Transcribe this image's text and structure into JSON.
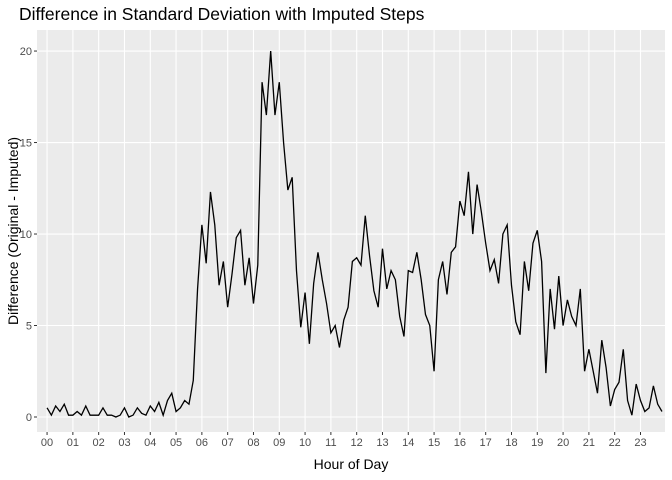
{
  "chart_data": {
    "type": "line",
    "title": "Difference in Standard Deviation with Imputed Steps",
    "x_label": "Hour of Day",
    "y_label": "Difference (Original - Imputed)",
    "grid": true,
    "xlim": [
      -0.39,
      23.95
    ],
    "ylim": [
      -0.82,
      21.15
    ],
    "xticks": [
      {
        "value": 0,
        "label": "00"
      },
      {
        "value": 1,
        "label": "01"
      },
      {
        "value": 2,
        "label": "02"
      },
      {
        "value": 3,
        "label": "03"
      },
      {
        "value": 4,
        "label": "04"
      },
      {
        "value": 5,
        "label": "05"
      },
      {
        "value": 6,
        "label": "06"
      },
      {
        "value": 7,
        "label": "07"
      },
      {
        "value": 8,
        "label": "08"
      },
      {
        "value": 9,
        "label": "09"
      },
      {
        "value": 10,
        "label": "10"
      },
      {
        "value": 11,
        "label": "11"
      },
      {
        "value": 12,
        "label": "12"
      },
      {
        "value": 13,
        "label": "13"
      },
      {
        "value": 14,
        "label": "14"
      },
      {
        "value": 15,
        "label": "15"
      },
      {
        "value": 16,
        "label": "16"
      },
      {
        "value": 17,
        "label": "17"
      },
      {
        "value": 18,
        "label": "18"
      },
      {
        "value": 19,
        "label": "19"
      },
      {
        "value": 20,
        "label": "20"
      },
      {
        "value": 21,
        "label": "21"
      },
      {
        "value": 22,
        "label": "22"
      },
      {
        "value": 23,
        "label": "23"
      }
    ],
    "yticks": [
      0,
      5,
      10,
      15,
      20
    ],
    "color": "#000000",
    "x": [
      0,
      0.167,
      0.333,
      0.5,
      0.667,
      0.833,
      1,
      1.167,
      1.333,
      1.5,
      1.667,
      1.833,
      2,
      2.167,
      2.333,
      2.5,
      2.667,
      2.833,
      3,
      3.167,
      3.333,
      3.5,
      3.667,
      3.833,
      4,
      4.167,
      4.333,
      4.5,
      4.667,
      4.833,
      5,
      5.167,
      5.333,
      5.5,
      5.667,
      5.833,
      6,
      6.167,
      6.333,
      6.5,
      6.667,
      6.833,
      7,
      7.167,
      7.333,
      7.5,
      7.667,
      7.833,
      8,
      8.167,
      8.333,
      8.5,
      8.667,
      8.833,
      9,
      9.167,
      9.333,
      9.5,
      9.667,
      9.833,
      10,
      10.167,
      10.333,
      10.5,
      10.667,
      10.833,
      11,
      11.167,
      11.333,
      11.5,
      11.667,
      11.833,
      12,
      12.167,
      12.333,
      12.5,
      12.667,
      12.833,
      13,
      13.167,
      13.333,
      13.5,
      13.667,
      13.833,
      14,
      14.167,
      14.333,
      14.5,
      14.667,
      14.833,
      15,
      15.167,
      15.333,
      15.5,
      15.667,
      15.833,
      16,
      16.167,
      16.333,
      16.5,
      16.667,
      16.833,
      17,
      17.167,
      17.333,
      17.5,
      17.667,
      17.833,
      18,
      18.167,
      18.333,
      18.5,
      18.667,
      18.833,
      19,
      19.167,
      19.333,
      19.5,
      19.667,
      19.833,
      20,
      20.167,
      20.333,
      20.5,
      20.667,
      20.833,
      21,
      21.167,
      21.333,
      21.5,
      21.667,
      21.833,
      22,
      22.167,
      22.333,
      22.5,
      22.667,
      22.833,
      23,
      23.167,
      23.333,
      23.5,
      23.667,
      23.833
    ],
    "values": [
      0.5,
      0.1,
      0.6,
      0.3,
      0.7,
      0.1,
      0.1,
      0.3,
      0.1,
      0.6,
      0.1,
      0.1,
      0.1,
      0.5,
      0.1,
      0.1,
      0.0,
      0.1,
      0.5,
      0.0,
      0.1,
      0.5,
      0.2,
      0.1,
      0.6,
      0.3,
      0.8,
      0.1,
      0.9,
      1.3,
      0.3,
      0.5,
      0.9,
      0.7,
      2.0,
      7.0,
      10.5,
      8.4,
      12.3,
      10.5,
      7.2,
      8.5,
      6.0,
      7.8,
      9.8,
      10.2,
      7.2,
      8.7,
      6.2,
      8.3,
      18.3,
      16.5,
      20.0,
      16.5,
      18.3,
      15.0,
      12.4,
      13.1,
      8.0,
      4.9,
      6.8,
      4.0,
      7.3,
      9.0,
      7.5,
      6.2,
      4.6,
      5.0,
      3.8,
      5.3,
      6.0,
      8.5,
      8.7,
      8.3,
      11.0,
      8.8,
      6.9,
      6.0,
      9.2,
      7.0,
      8.0,
      7.5,
      5.5,
      4.4,
      8.0,
      7.9,
      9.0,
      7.5,
      5.6,
      5.0,
      2.5,
      7.5,
      8.5,
      6.7,
      9.0,
      9.3,
      11.8,
      11.0,
      13.4,
      10.0,
      12.7,
      11.2,
      9.5,
      8.0,
      8.6,
      7.3,
      10.0,
      10.5,
      7.2,
      5.2,
      4.5,
      8.5,
      6.9,
      9.5,
      10.2,
      8.5,
      2.4,
      7.0,
      4.8,
      7.7,
      5.0,
      6.4,
      5.5,
      5.0,
      7.0,
      2.5,
      3.7,
      2.5,
      1.3,
      4.2,
      2.7,
      0.6,
      1.5,
      1.9,
      3.7,
      0.9,
      0.1,
      1.8,
      0.9,
      0.3,
      0.5,
      1.7,
      0.7,
      0.3
    ]
  }
}
